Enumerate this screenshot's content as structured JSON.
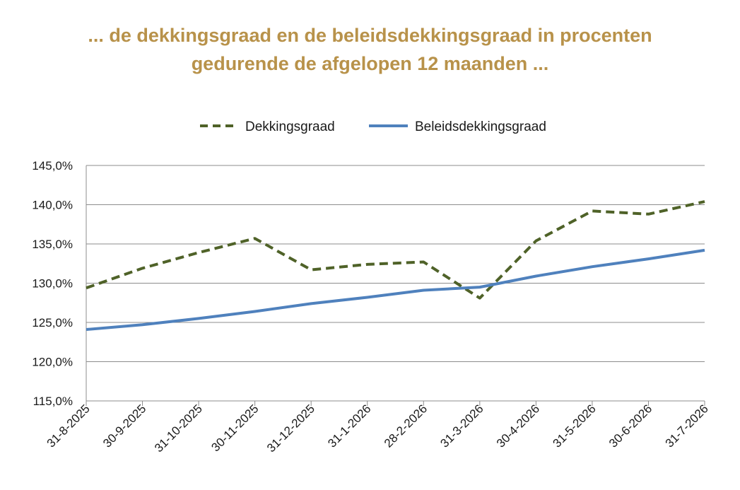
{
  "chart_data": {
    "type": "line",
    "title_lines": [
      "... de dekkingsgraad en de beleidsdekkingsgraad in procenten",
      "gedurende de afgelopen 12 maanden ..."
    ],
    "categories": [
      "31-8-2025",
      "30-9-2025",
      "31-10-2025",
      "30-11-2025",
      "31-12-2025",
      "31-1-2026",
      "28-2-2026",
      "31-3-2026",
      "30-4-2026",
      "31-5-2026",
      "30-6-2026",
      "31-7-2026"
    ],
    "series": [
      {
        "name": "Dekkingsgraad",
        "style": "dashed",
        "color": "#4F6228",
        "values": [
          129.4,
          131.9,
          133.9,
          135.7,
          131.7,
          132.4,
          132.7,
          128.1,
          135.4,
          139.2,
          138.8,
          140.4
        ]
      },
      {
        "name": "Beleidsdekkingsgraad",
        "style": "solid",
        "color": "#4F81BD",
        "values": [
          124.1,
          124.7,
          125.5,
          126.4,
          127.4,
          128.2,
          129.1,
          129.5,
          130.9,
          132.1,
          133.1,
          134.2
        ]
      }
    ],
    "ylim": [
      115,
      145
    ],
    "yticks": [
      "115,0%",
      "120,0%",
      "125,0%",
      "130,0%",
      "135,0%",
      "140,0%",
      "145,0%"
    ],
    "grid": true,
    "legend_position": "top",
    "title_color": "#B8924A"
  }
}
